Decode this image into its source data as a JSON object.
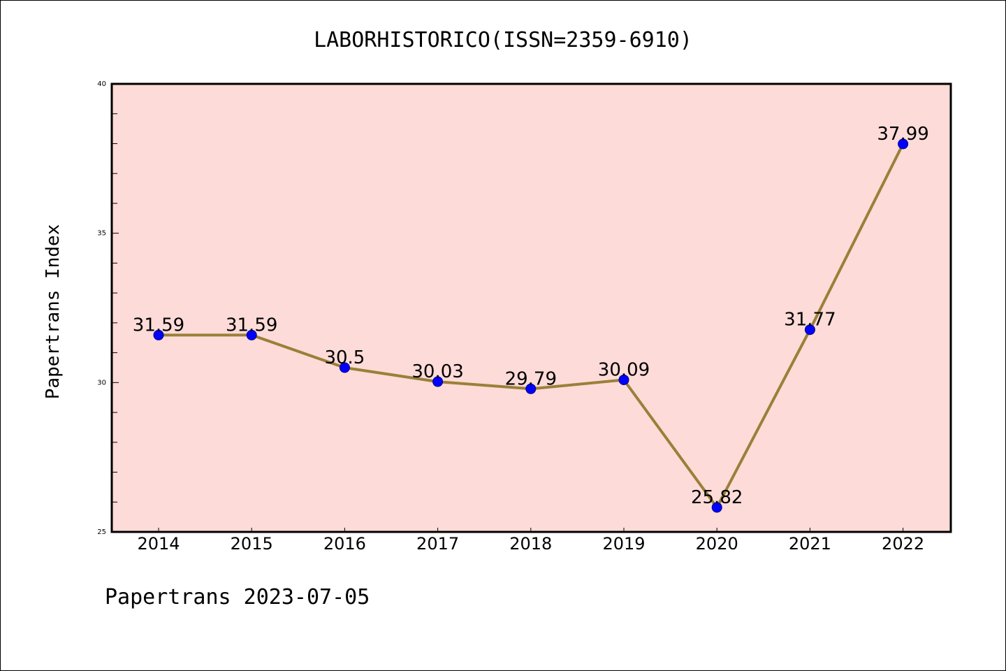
{
  "chart_data": {
    "type": "line",
    "title": "LABORHISTORICO(ISSN=2359-6910)",
    "xlabel": "",
    "ylabel": "Papertrans Index",
    "categories": [
      "2014",
      "2015",
      "2016",
      "2017",
      "2018",
      "2019",
      "2020",
      "2021",
      "2022"
    ],
    "series": [
      {
        "values": [
          31.59,
          31.59,
          30.5,
          30.03,
          29.79,
          30.09,
          25.82,
          31.77,
          37.99
        ],
        "labels": [
          "31.59",
          "31.59",
          "30.5",
          "30.03",
          "29.79",
          "30.09",
          "25.82",
          "31.77",
          "37.99"
        ]
      }
    ],
    "ylim": [
      25,
      40
    ],
    "yticks": [
      "25",
      "30",
      "35",
      "40"
    ],
    "grid": false,
    "colors": {
      "plot_background": "#fddbd8",
      "line": "#9a8038",
      "marker": "#0000ff"
    }
  },
  "footer": "Papertrans 2023-07-05"
}
